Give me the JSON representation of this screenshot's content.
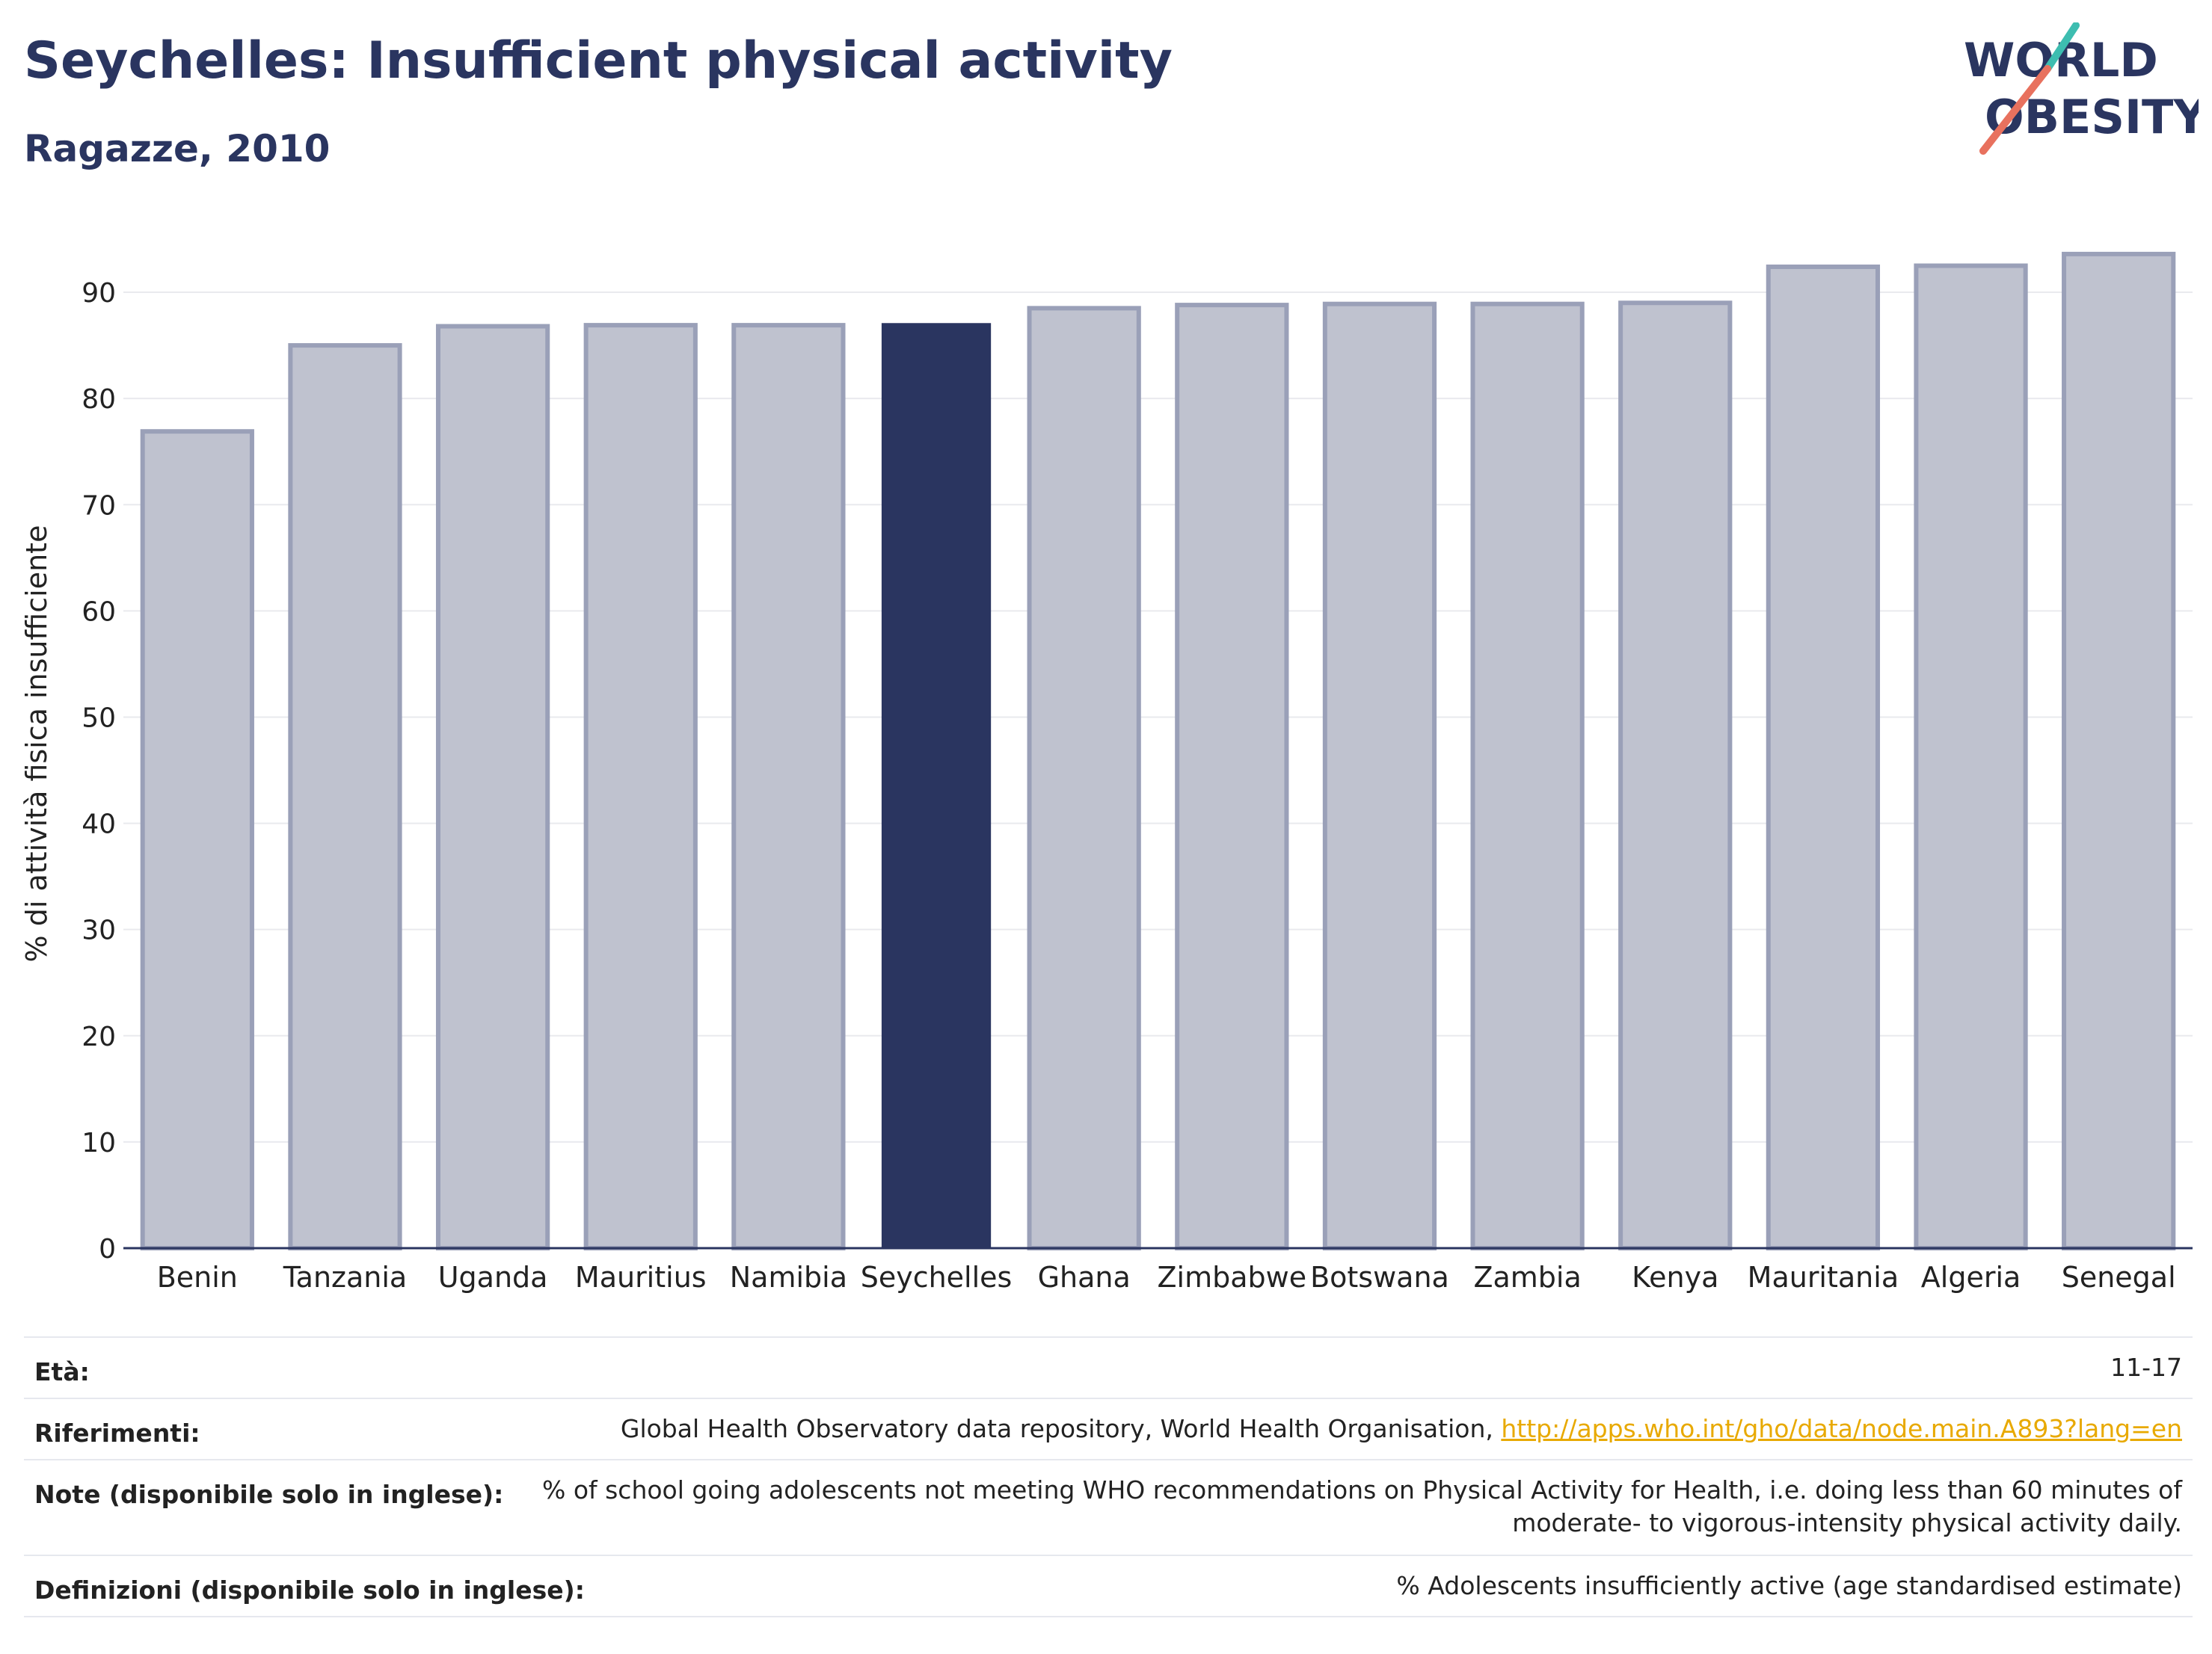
{
  "header": {
    "title": "Seychelles: Insufficient physical activity",
    "subtitle": "Ragazze, 2010"
  },
  "logo": {
    "line1": "WORLD",
    "line2": "OBESITY",
    "accent_teal": "#3dbdb0",
    "accent_coral": "#e8715e"
  },
  "colors": {
    "highlight_bar": "#2a3560",
    "other_bar_fill": "#bfc2cf",
    "other_bar_stroke": "#9aa0b8",
    "text": "#2a3560"
  },
  "chart_data": {
    "type": "bar",
    "categories": [
      "Benin",
      "Tanzania",
      "Uganda",
      "Mauritius",
      "Namibia",
      "Seychelles",
      "Ghana",
      "Zimbabwe",
      "Botswana",
      "Zambia",
      "Kenya",
      "Mauritania",
      "Algeria",
      "Senegal"
    ],
    "values": [
      76.9,
      85.0,
      86.8,
      86.9,
      86.9,
      87.1,
      88.5,
      88.8,
      88.9,
      88.9,
      89.0,
      92.4,
      92.5,
      93.6
    ],
    "highlight": "Seychelles",
    "ylabel": "% di attività fisica insufficiente",
    "ylim": [
      0,
      95
    ],
    "yticks": [
      0,
      10,
      20,
      30,
      40,
      50,
      60,
      70,
      80,
      90
    ],
    "grid": true
  },
  "info": {
    "age": {
      "label": "Età:",
      "value": "11-17"
    },
    "references": {
      "label": "Riferimenti:",
      "value": "Global Health Observatory data repository, World Health Organisation, ",
      "link": "http://apps.who.int/gho/data/node.main.A893?lang=en"
    },
    "notes": {
      "label": "Note (disponibile solo in inglese):",
      "line1": "% of school going adolescents not meeting WHO recommendations on Physical Activity for Health, i.e. doing less than 60 minutes of",
      "line2": "moderate- to vigorous-intensity physical activity daily."
    },
    "definitions": {
      "label": "Definizioni (disponibile solo in inglese):",
      "value": "% Adolescents insufficiently active (age standardised estimate)"
    }
  }
}
